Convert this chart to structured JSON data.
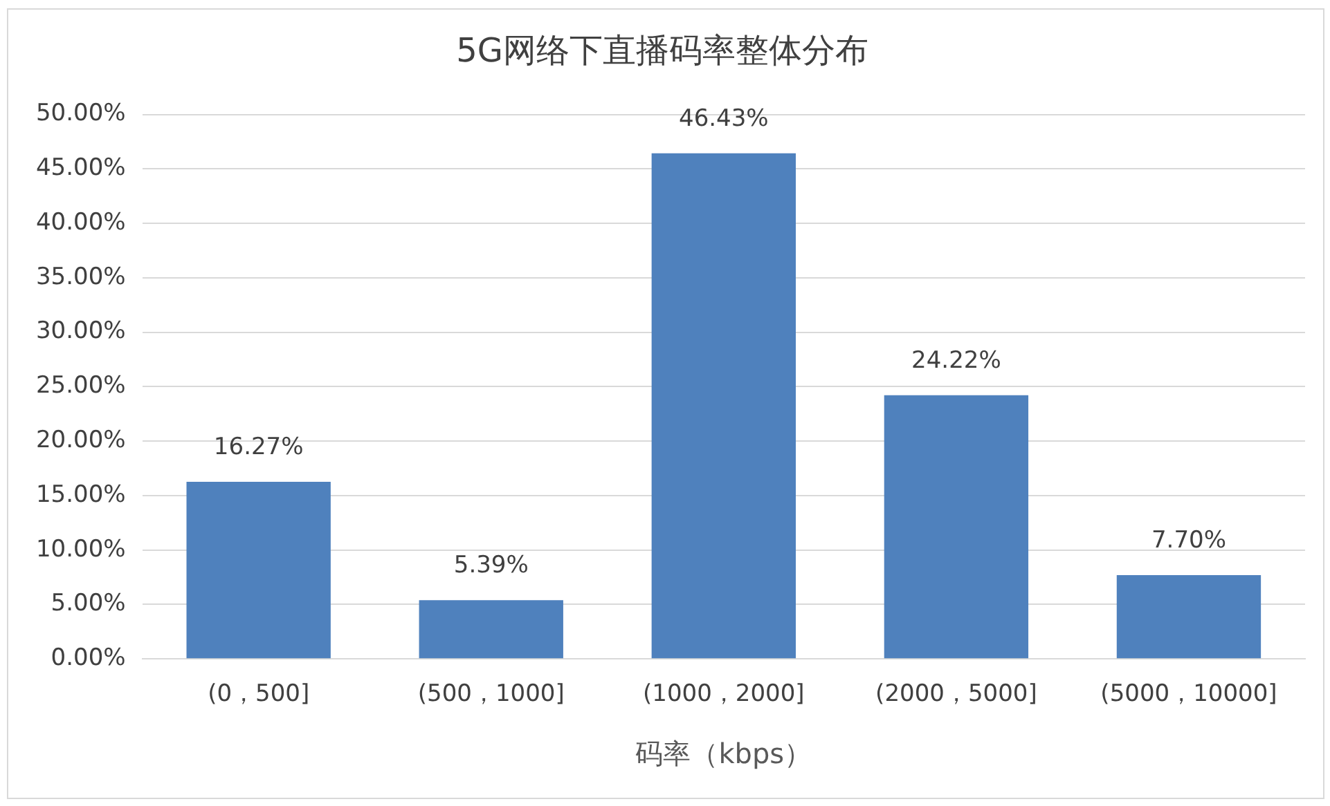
{
  "chart_data": {
    "type": "bar",
    "title": "5G网络下直播码率整体分布",
    "xlabel": "码率（kbps）",
    "categories": [
      "(0，500]",
      "(500，1000]",
      "(1000，2000]",
      "(2000，5000]",
      "(5000，10000]"
    ],
    "values": [
      16.27,
      5.39,
      46.43,
      24.22,
      7.7
    ],
    "value_labels": [
      "16.27%",
      "5.39%",
      "46.43%",
      "24.22%",
      "7.70%"
    ],
    "color": "#4f81bd",
    "ylim": [
      0,
      50
    ],
    "yticks": [
      {
        "value": 0,
        "label": "0.00%"
      },
      {
        "value": 5,
        "label": "5.00%"
      },
      {
        "value": 10,
        "label": "10.00%"
      },
      {
        "value": 15,
        "label": "15.00%"
      },
      {
        "value": 20,
        "label": "20.00%"
      },
      {
        "value": 25,
        "label": "25.00%"
      },
      {
        "value": 30,
        "label": "30.00%"
      },
      {
        "value": 35,
        "label": "35.00%"
      },
      {
        "value": 40,
        "label": "40.00%"
      },
      {
        "value": 45,
        "label": "45.00%"
      },
      {
        "value": 50,
        "label": "50.00%"
      }
    ],
    "grid": "y"
  }
}
